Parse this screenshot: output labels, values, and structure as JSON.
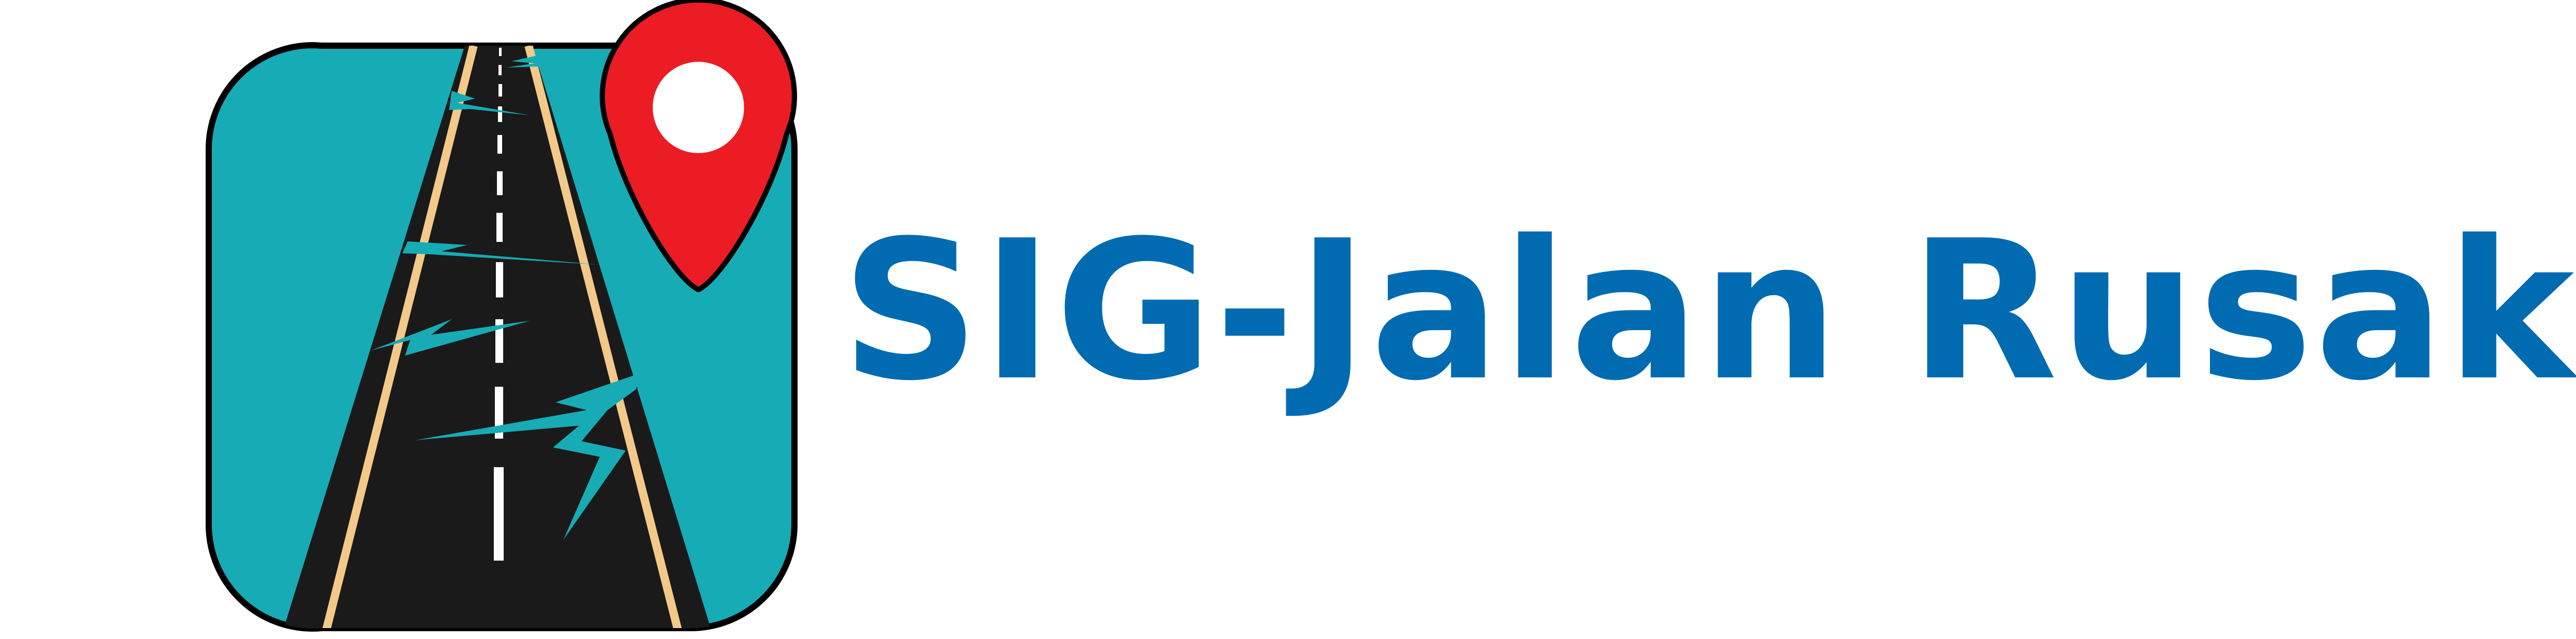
{
  "logo": {
    "title": "SIG-Jalan Rusak",
    "icon": "road-with-cracks-and-map-pin-icon"
  },
  "colors": {
    "title_text": "#006BB0",
    "icon_background": "#17ABB5",
    "road_asphalt": "#1A1A1A",
    "road_edge_lines": "#F3C98A",
    "center_dashes": "#FFFFFF",
    "crack_lines": "#17ABB5",
    "map_pin": "#EC1C24",
    "outline": "#000000"
  }
}
